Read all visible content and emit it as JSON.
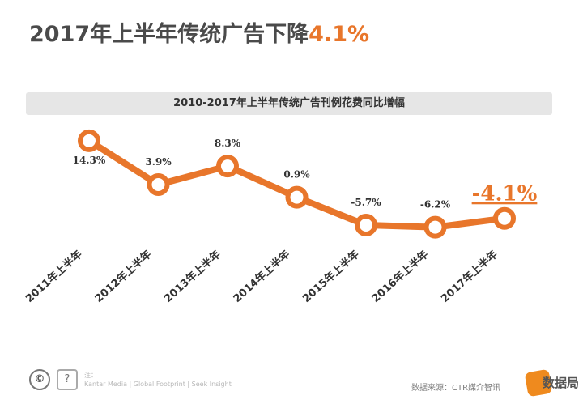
{
  "headline": {
    "text": "2017年上半年传统广告下降",
    "accent": "4.1%"
  },
  "subtitle": "2010-2017年上半年传统广告刊例花费同比增幅",
  "chart_data": {
    "type": "line",
    "categories": [
      "2011年上半年",
      "2012年上半年",
      "2013年上半年",
      "2014年上半年",
      "2015年上半年",
      "2016年上半年",
      "2017年上半年"
    ],
    "values": [
      14.3,
      3.9,
      8.3,
      0.9,
      -5.7,
      -6.2,
      -4.1
    ],
    "labels": [
      "14.3%",
      "3.9%",
      "8.3%",
      "0.9%",
      "-5.7%",
      "-6.2%",
      "-4.1%"
    ],
    "title": "2010-2017年上半年传统广告刊例花费同比增幅",
    "ylim": [
      -8,
      16
    ],
    "grid": false,
    "line_color": "#e8762b",
    "label_color": "#333333",
    "highlight_label_color": "#e8762b"
  },
  "footer": {
    "icon_copyright": "copyright-icon",
    "icon_help": "question-icon",
    "line1": "注：",
    "line2": "Kantar Media | Global Footprint | Seek Insight",
    "source": "数据来源：CTR媒介智讯",
    "logo_text": "数据局"
  },
  "colors": {
    "accent": "#e8762b",
    "logo": "#ef8a1e",
    "bar": "#e6e6e6"
  }
}
